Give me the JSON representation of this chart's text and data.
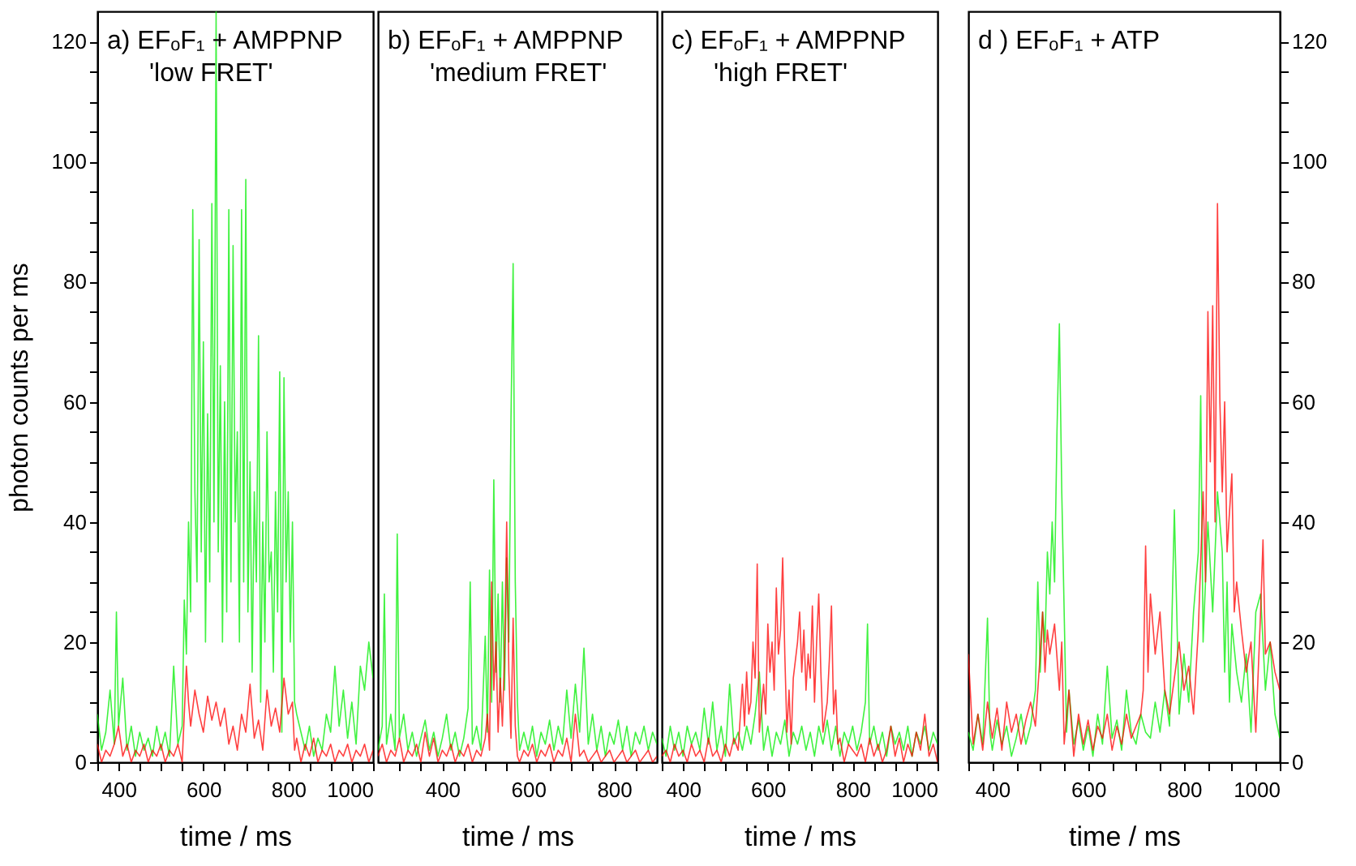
{
  "chart_data": [
    {
      "type": "line",
      "title": "a)  EFₒF₁ + AMPPNP",
      "subtitle": "'low FRET'",
      "xlabel": "time / ms",
      "ylabel": "photon counts per ms",
      "xlim": [
        350,
        1000
      ],
      "ylim": [
        0,
        125
      ],
      "xticks": [
        {
          "value": 350,
          "label": null
        },
        400,
        {
          "value": 450,
          "label": null
        },
        {
          "value": 500,
          "label": null
        },
        {
          "value": 550,
          "label": null
        },
        600,
        {
          "value": 650,
          "label": null
        },
        {
          "value": 700,
          "label": null
        },
        {
          "value": 750,
          "label": null
        },
        800,
        {
          "value": 850,
          "label": null
        },
        {
          "value": 900,
          "label": null
        },
        {
          "value": 950,
          "label": null
        },
        1000
      ],
      "yticks": [
        0,
        {
          "value": 5,
          "label": null
        },
        {
          "value": 10,
          "label": null
        },
        {
          "value": 15,
          "label": null
        },
        20,
        {
          "value": 25,
          "label": null
        },
        {
          "value": 30,
          "label": null
        },
        {
          "value": 35,
          "label": null
        },
        40,
        {
          "value": 45,
          "label": null
        },
        {
          "value": 50,
          "label": null
        },
        {
          "value": 55,
          "label": null
        },
        60,
        {
          "value": 65,
          "label": null
        },
        {
          "value": 70,
          "label": null
        },
        {
          "value": 75,
          "label": null
        },
        80,
        {
          "value": 85,
          "label": null
        },
        {
          "value": 90,
          "label": null
        },
        {
          "value": 95,
          "label": null
        },
        100,
        {
          "value": 105,
          "label": null
        },
        {
          "value": 110,
          "label": null
        },
        {
          "value": 115,
          "label": null
        },
        120
      ],
      "series": [
        {
          "color": "#00ee00",
          "x": [
            350,
            360,
            370,
            380,
            390,
            395,
            400,
            410,
            420,
            430,
            440,
            450,
            460,
            470,
            480,
            490,
            500,
            510,
            520,
            530,
            540,
            550,
            555,
            560,
            565,
            570,
            575,
            580,
            585,
            590,
            595,
            600,
            605,
            610,
            615,
            620,
            625,
            630,
            635,
            640,
            645,
            650,
            655,
            660,
            665,
            670,
            675,
            680,
            685,
            690,
            695,
            700,
            705,
            710,
            715,
            720,
            725,
            730,
            735,
            740,
            745,
            750,
            755,
            760,
            765,
            770,
            775,
            780,
            785,
            790,
            795,
            800,
            805,
            810,
            815,
            820,
            830,
            840,
            850,
            860,
            870,
            880,
            890,
            900,
            910,
            920,
            930,
            940,
            950,
            960,
            970,
            980,
            990,
            1000
          ],
          "values": [
            8,
            2,
            5,
            12,
            3,
            25,
            6,
            14,
            2,
            6,
            1,
            5,
            2,
            4,
            1,
            6,
            2,
            5,
            1,
            16,
            3,
            6,
            27,
            18,
            40,
            25,
            92,
            45,
            30,
            87,
            35,
            70,
            20,
            58,
            30,
            93,
            40,
            125,
            35,
            66,
            20,
            60,
            25,
            92,
            30,
            86,
            40,
            55,
            20,
            92,
            30,
            97,
            25,
            50,
            15,
            45,
            30,
            71,
            10,
            40,
            20,
            55,
            30,
            35,
            15,
            45,
            25,
            65,
            5,
            64,
            30,
            45,
            20,
            40,
            10,
            8,
            5,
            2,
            6,
            1,
            4,
            2,
            8,
            5,
            16,
            6,
            12,
            4,
            10,
            3,
            16,
            12,
            20,
            14
          ]
        },
        {
          "color": "#ff0000",
          "x": [
            350,
            360,
            370,
            380,
            390,
            400,
            410,
            420,
            430,
            440,
            450,
            460,
            470,
            480,
            490,
            500,
            510,
            520,
            530,
            540,
            550,
            555,
            560,
            565,
            570,
            580,
            590,
            600,
            610,
            620,
            630,
            640,
            650,
            660,
            670,
            680,
            690,
            700,
            710,
            720,
            730,
            740,
            750,
            760,
            770,
            780,
            790,
            800,
            810,
            815,
            820,
            830,
            840,
            850,
            860,
            870,
            880,
            890,
            900,
            910,
            920,
            930,
            940,
            950,
            960,
            970,
            980,
            990,
            1000
          ],
          "values": [
            3,
            0,
            2,
            1,
            3,
            6,
            1,
            3,
            0,
            2,
            1,
            3,
            0,
            2,
            1,
            3,
            0,
            2,
            1,
            3,
            0,
            8,
            16,
            10,
            6,
            12,
            8,
            5,
            11,
            7,
            10,
            6,
            9,
            3,
            6,
            2,
            8,
            5,
            13,
            4,
            7,
            2,
            12,
            6,
            9,
            5,
            14,
            8,
            10,
            2,
            4,
            0,
            3,
            1,
            4,
            0,
            2,
            1,
            3,
            0,
            2,
            1,
            3,
            0,
            2,
            1,
            3,
            0,
            2
          ]
        }
      ]
    },
    {
      "type": "line",
      "title": "b)  EFₒF₁ + AMPPNP",
      "subtitle": "'medium FRET'",
      "xlabel": "time / ms",
      "xlim": [
        250,
        900
      ],
      "ylim": [
        0,
        125
      ],
      "tick_labels": "x",
      "xticks": [
        {
          "value": 300,
          "label": null
        },
        {
          "value": 350,
          "label": null
        },
        400,
        {
          "value": 450,
          "label": null
        },
        {
          "value": 500,
          "label": null
        },
        {
          "value": 550,
          "label": null
        },
        600,
        {
          "value": 650,
          "label": null
        },
        {
          "value": 700,
          "label": null
        },
        {
          "value": 750,
          "label": null
        },
        800,
        {
          "value": 850,
          "label": null
        }
      ],
      "series": [
        {
          "color": "#00ee00",
          "x": [
            250,
            260,
            265,
            270,
            280,
            290,
            295,
            300,
            310,
            320,
            330,
            340,
            350,
            360,
            370,
            380,
            390,
            400,
            410,
            420,
            430,
            440,
            450,
            460,
            465,
            470,
            480,
            490,
            500,
            505,
            510,
            515,
            520,
            525,
            530,
            535,
            540,
            545,
            550,
            555,
            560,
            565,
            570,
            575,
            580,
            590,
            600,
            610,
            620,
            630,
            640,
            650,
            660,
            670,
            680,
            690,
            700,
            710,
            720,
            730,
            740,
            750,
            760,
            770,
            780,
            790,
            800,
            810,
            820,
            830,
            840,
            850,
            860,
            870,
            880,
            890,
            900
          ],
          "values": [
            2,
            6,
            28,
            3,
            8,
            2,
            38,
            4,
            8,
            2,
            5,
            1,
            4,
            7,
            2,
            5,
            1,
            4,
            8,
            2,
            5,
            1,
            4,
            9,
            30,
            3,
            6,
            2,
            21,
            5,
            32,
            10,
            47,
            15,
            28,
            10,
            30,
            12,
            34,
            20,
            57,
            83,
            30,
            10,
            2,
            5,
            2,
            6,
            1,
            5,
            3,
            7,
            2,
            6,
            3,
            12,
            4,
            13,
            5,
            19,
            3,
            8,
            2,
            6,
            1,
            5,
            3,
            7,
            2,
            6,
            1,
            5,
            3,
            6,
            2,
            5,
            3
          ]
        },
        {
          "color": "#ff0000",
          "x": [
            250,
            260,
            270,
            280,
            290,
            300,
            310,
            320,
            330,
            340,
            350,
            360,
            370,
            380,
            390,
            400,
            410,
            420,
            430,
            440,
            450,
            460,
            470,
            480,
            490,
            500,
            505,
            510,
            515,
            520,
            525,
            530,
            535,
            540,
            545,
            550,
            555,
            560,
            565,
            570,
            575,
            580,
            590,
            600,
            610,
            620,
            630,
            640,
            650,
            660,
            670,
            680,
            690,
            700,
            710,
            720,
            730,
            740,
            750,
            760,
            770,
            780,
            790,
            800,
            810,
            820,
            830,
            840,
            850,
            860,
            870,
            880,
            890,
            900
          ],
          "values": [
            1,
            3,
            0,
            2,
            1,
            4,
            0,
            2,
            1,
            3,
            0,
            5,
            1,
            4,
            0,
            2,
            1,
            3,
            0,
            2,
            1,
            3,
            0,
            2,
            1,
            4,
            8,
            2,
            30,
            12,
            20,
            5,
            14,
            6,
            18,
            40,
            15,
            4,
            24,
            6,
            1,
            0,
            2,
            1,
            3,
            0,
            2,
            1,
            3,
            0,
            2,
            1,
            4,
            0,
            8,
            1,
            2,
            0,
            1,
            2,
            0,
            1,
            2,
            0,
            1,
            2,
            0,
            1,
            2,
            0,
            1,
            2,
            0,
            1
          ]
        }
      ]
    },
    {
      "type": "line",
      "title": "c)  EFₒF₁ + AMPPNP",
      "subtitle": "'high FRET'",
      "xlabel": "time / ms",
      "xlim": [
        350,
        1000
      ],
      "ylim": [
        0,
        125
      ],
      "tick_labels": "x",
      "xticks": [
        {
          "value": 350,
          "label": null
        },
        400,
        {
          "value": 450,
          "label": null
        },
        {
          "value": 500,
          "label": null
        },
        {
          "value": 550,
          "label": null
        },
        600,
        {
          "value": 650,
          "label": null
        },
        {
          "value": 700,
          "label": null
        },
        {
          "value": 750,
          "label": null
        },
        800,
        {
          "value": 850,
          "label": null
        },
        {
          "value": 900,
          "label": null
        },
        {
          "value": 950,
          "label": null
        },
        1000
      ],
      "series": [
        {
          "color": "#00ee00",
          "x": [
            350,
            360,
            370,
            380,
            390,
            400,
            410,
            420,
            430,
            440,
            450,
            460,
            470,
            480,
            490,
            500,
            510,
            520,
            530,
            540,
            550,
            560,
            570,
            580,
            590,
            600,
            610,
            620,
            630,
            640,
            650,
            660,
            670,
            680,
            690,
            700,
            710,
            720,
            730,
            740,
            750,
            760,
            770,
            780,
            790,
            800,
            810,
            820,
            830,
            835,
            840,
            850,
            860,
            870,
            880,
            890,
            900,
            910,
            920,
            930,
            940,
            950,
            960,
            970,
            980,
            990,
            1000
          ],
          "values": [
            4,
            1,
            6,
            2,
            5,
            1,
            6,
            3,
            5,
            2,
            9,
            3,
            10,
            2,
            6,
            1,
            13,
            3,
            5,
            2,
            6,
            3,
            8,
            15,
            2,
            6,
            1,
            5,
            3,
            7,
            1,
            5,
            3,
            6,
            2,
            5,
            1,
            6,
            3,
            7,
            2,
            6,
            1,
            5,
            3,
            6,
            2,
            5,
            10,
            23,
            3,
            6,
            2,
            5,
            1,
            6,
            3,
            5,
            2,
            6,
            1,
            5,
            3,
            6,
            2,
            5,
            3
          ]
        },
        {
          "color": "#ff0000",
          "x": [
            350,
            360,
            370,
            380,
            390,
            400,
            410,
            420,
            430,
            440,
            450,
            460,
            470,
            480,
            490,
            500,
            510,
            520,
            530,
            540,
            545,
            550,
            555,
            560,
            565,
            570,
            575,
            580,
            590,
            595,
            600,
            605,
            610,
            615,
            620,
            625,
            630,
            635,
            640,
            645,
            650,
            655,
            660,
            670,
            675,
            680,
            685,
            690,
            695,
            700,
            705,
            710,
            715,
            720,
            725,
            730,
            740,
            745,
            750,
            755,
            760,
            765,
            770,
            780,
            790,
            800,
            810,
            820,
            830,
            840,
            850,
            860,
            870,
            880,
            890,
            900,
            910,
            920,
            930,
            940,
            950,
            960,
            970,
            980,
            990,
            1000
          ],
          "values": [
            1,
            2,
            0,
            3,
            1,
            2,
            0,
            3,
            1,
            2,
            0,
            4,
            1,
            2,
            0,
            3,
            1,
            4,
            2,
            13,
            6,
            15,
            8,
            10,
            20,
            14,
            33,
            5,
            13,
            8,
            23,
            15,
            20,
            12,
            29,
            18,
            22,
            34,
            18,
            5,
            12,
            3,
            14,
            20,
            25,
            15,
            22,
            12,
            18,
            14,
            26,
            10,
            20,
            28,
            15,
            5,
            10,
            17,
            26,
            8,
            12,
            3,
            4,
            0,
            3,
            2,
            1,
            3,
            0,
            4,
            1,
            3,
            0,
            2,
            6,
            1,
            4,
            0,
            3,
            1,
            5,
            2,
            8,
            1,
            3,
            0
          ]
        }
      ]
    },
    {
      "type": "line",
      "title": "d )   EFₒF₁ + ATP",
      "xlabel": "time / ms",
      "xlim": [
        350,
        1000
      ],
      "ylim": [
        0,
        125
      ],
      "xticks": [
        {
          "value": 350,
          "label": null
        },
        400,
        {
          "value": 450,
          "label": null
        },
        {
          "value": 500,
          "label": null
        },
        {
          "value": 550,
          "label": null
        },
        600,
        {
          "value": 650,
          "label": null
        },
        {
          "value": 700,
          "label": null
        },
        {
          "value": 750,
          "label": null
        },
        800,
        {
          "value": 850,
          "label": null
        },
        {
          "value": 900,
          "label": null
        },
        {
          "value": 950,
          "label": null
        },
        1000
      ],
      "yticks": [
        0,
        {
          "value": 5,
          "label": null
        },
        {
          "value": 10,
          "label": null
        },
        {
          "value": 15,
          "label": null
        },
        20,
        {
          "value": 25,
          "label": null
        },
        {
          "value": 30,
          "label": null
        },
        {
          "value": 35,
          "label": null
        },
        40,
        {
          "value": 45,
          "label": null
        },
        {
          "value": 50,
          "label": null
        },
        {
          "value": 55,
          "label": null
        },
        60,
        {
          "value": 65,
          "label": null
        },
        {
          "value": 70,
          "label": null
        },
        {
          "value": 75,
          "label": null
        },
        80,
        {
          "value": 85,
          "label": null
        },
        {
          "value": 90,
          "label": null
        },
        {
          "value": 95,
          "label": null
        },
        100,
        {
          "value": 105,
          "label": null
        },
        {
          "value": 110,
          "label": null
        },
        {
          "value": 115,
          "label": null
        },
        120
      ],
      "series": [
        {
          "color": "#00ee00",
          "x": [
            350,
            360,
            370,
            380,
            390,
            395,
            400,
            410,
            420,
            430,
            440,
            450,
            460,
            470,
            480,
            490,
            495,
            500,
            505,
            510,
            515,
            520,
            525,
            530,
            535,
            540,
            545,
            550,
            555,
            560,
            570,
            580,
            590,
            600,
            610,
            620,
            630,
            640,
            650,
            660,
            670,
            680,
            690,
            700,
            710,
            720,
            730,
            740,
            750,
            760,
            770,
            780,
            790,
            800,
            810,
            820,
            830,
            835,
            840,
            850,
            860,
            870,
            880,
            885,
            890,
            895,
            900,
            910,
            920,
            930,
            940,
            950,
            960,
            970,
            980,
            990,
            1000
          ],
          "values": [
            5,
            2,
            8,
            3,
            24,
            5,
            2,
            7,
            3,
            6,
            1,
            4,
            8,
            3,
            6,
            12,
            30,
            15,
            25,
            20,
            35,
            28,
            40,
            30,
            55,
            73,
            45,
            25,
            5,
            12,
            3,
            7,
            2,
            6,
            1,
            8,
            3,
            16,
            4,
            7,
            2,
            12,
            5,
            3,
            8,
            5,
            4,
            10,
            5,
            12,
            6,
            42,
            8,
            18,
            10,
            25,
            35,
            61,
            20,
            40,
            25,
            45,
            35,
            15,
            30,
            10,
            23,
            15,
            10,
            18,
            5,
            25,
            28,
            12,
            20,
            8,
            4
          ]
        },
        {
          "color": "#ff0000",
          "x": [
            350,
            360,
            370,
            380,
            390,
            400,
            410,
            420,
            430,
            440,
            450,
            460,
            470,
            480,
            490,
            500,
            505,
            510,
            515,
            520,
            530,
            540,
            545,
            550,
            560,
            570,
            580,
            590,
            600,
            610,
            620,
            630,
            640,
            650,
            660,
            670,
            680,
            690,
            700,
            710,
            715,
            720,
            725,
            730,
            740,
            750,
            760,
            770,
            780,
            790,
            800,
            810,
            820,
            830,
            840,
            845,
            850,
            855,
            860,
            865,
            870,
            875,
            880,
            885,
            890,
            900,
            905,
            910,
            920,
            930,
            940,
            950,
            960,
            965,
            970,
            980,
            990,
            1000
          ],
          "values": [
            18,
            3,
            8,
            2,
            10,
            4,
            9,
            2,
            10,
            5,
            8,
            3,
            7,
            10,
            6,
            18,
            25,
            15,
            22,
            18,
            23,
            12,
            20,
            3,
            12,
            1,
            8,
            3,
            7,
            2,
            6,
            4,
            8,
            2,
            6,
            3,
            8,
            4,
            6,
            8,
            12,
            36,
            15,
            28,
            18,
            25,
            12,
            8,
            14,
            20,
            12,
            16,
            8,
            22,
            45,
            30,
            75,
            50,
            76,
            40,
            93,
            60,
            45,
            60,
            35,
            48,
            25,
            30,
            22,
            15,
            20,
            5,
            25,
            37,
            18,
            20,
            15,
            12
          ]
        }
      ]
    }
  ]
}
